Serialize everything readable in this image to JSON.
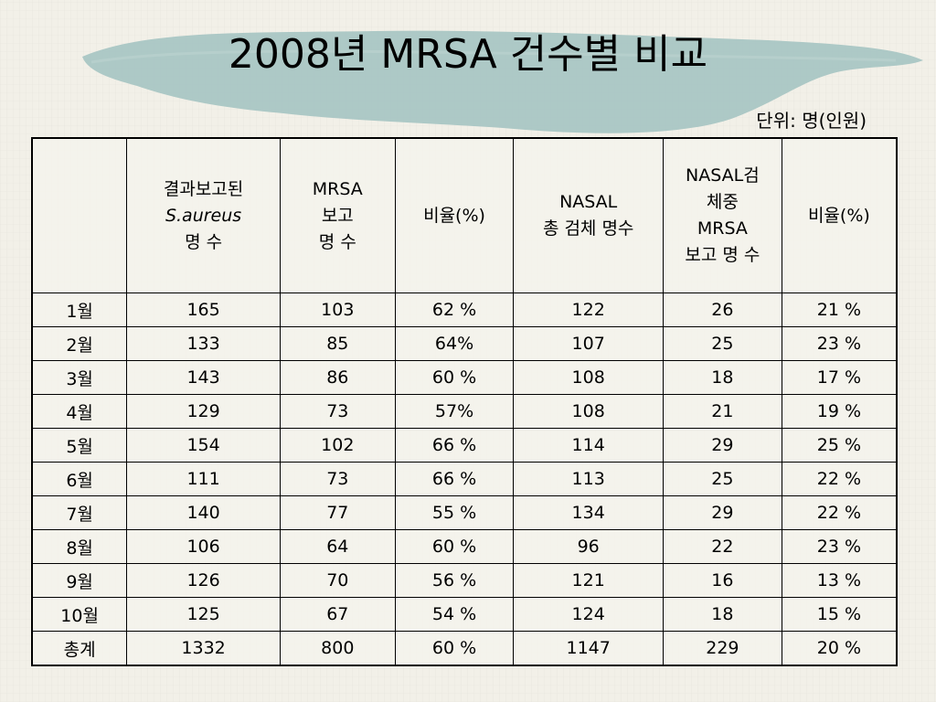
{
  "title": "2008년 MRSA 건수별 비교",
  "unit": "단위: 명(인원)",
  "columns": [
    {
      "lines": [
        ""
      ]
    },
    {
      "lines": [
        "결과보고된",
        "S.aureus",
        "명 수"
      ]
    },
    {
      "lines": [
        "MRSA",
        "보고",
        "명 수"
      ]
    },
    {
      "lines": [
        "비율(%)"
      ]
    },
    {
      "lines": [
        "NASAL",
        "총 검체 명수"
      ]
    },
    {
      "lines": [
        "NASAL검",
        "체중",
        "MRSA",
        "보고 명 수"
      ]
    },
    {
      "lines": [
        "비율(%)"
      ]
    }
  ],
  "rows": [
    [
      "1월",
      "165",
      "103",
      "62 %",
      "122",
      "26",
      "21 %"
    ],
    [
      "2월",
      "133",
      "85",
      "64%",
      "107",
      "25",
      "23 %"
    ],
    [
      "3월",
      "143",
      "86",
      "60 %",
      "108",
      "18",
      "17 %"
    ],
    [
      "4월",
      "129",
      "73",
      "57%",
      "108",
      "21",
      "19 %"
    ],
    [
      "5월",
      "154",
      "102",
      "66 %",
      "114",
      "29",
      "25 %"
    ],
    [
      "6월",
      "111",
      "73",
      "66 %",
      "113",
      "25",
      "22 %"
    ],
    [
      "7월",
      "140",
      "77",
      "55 %",
      "134",
      "29",
      "22 %"
    ],
    [
      "8월",
      "106",
      "64",
      "60 %",
      "96",
      "22",
      "23 %"
    ],
    [
      "9월",
      "126",
      "70",
      "56 %",
      "121",
      "16",
      "13 %"
    ],
    [
      "10월",
      "125",
      "67",
      "54 %",
      "124",
      "18",
      "15 %"
    ],
    [
      "총계",
      "1332",
      "800",
      "60 %",
      "1147",
      "229",
      "20 %"
    ]
  ],
  "colors": {
    "brush": "#a9c6c4",
    "background": "#f2f0e8",
    "border": "#000000"
  }
}
